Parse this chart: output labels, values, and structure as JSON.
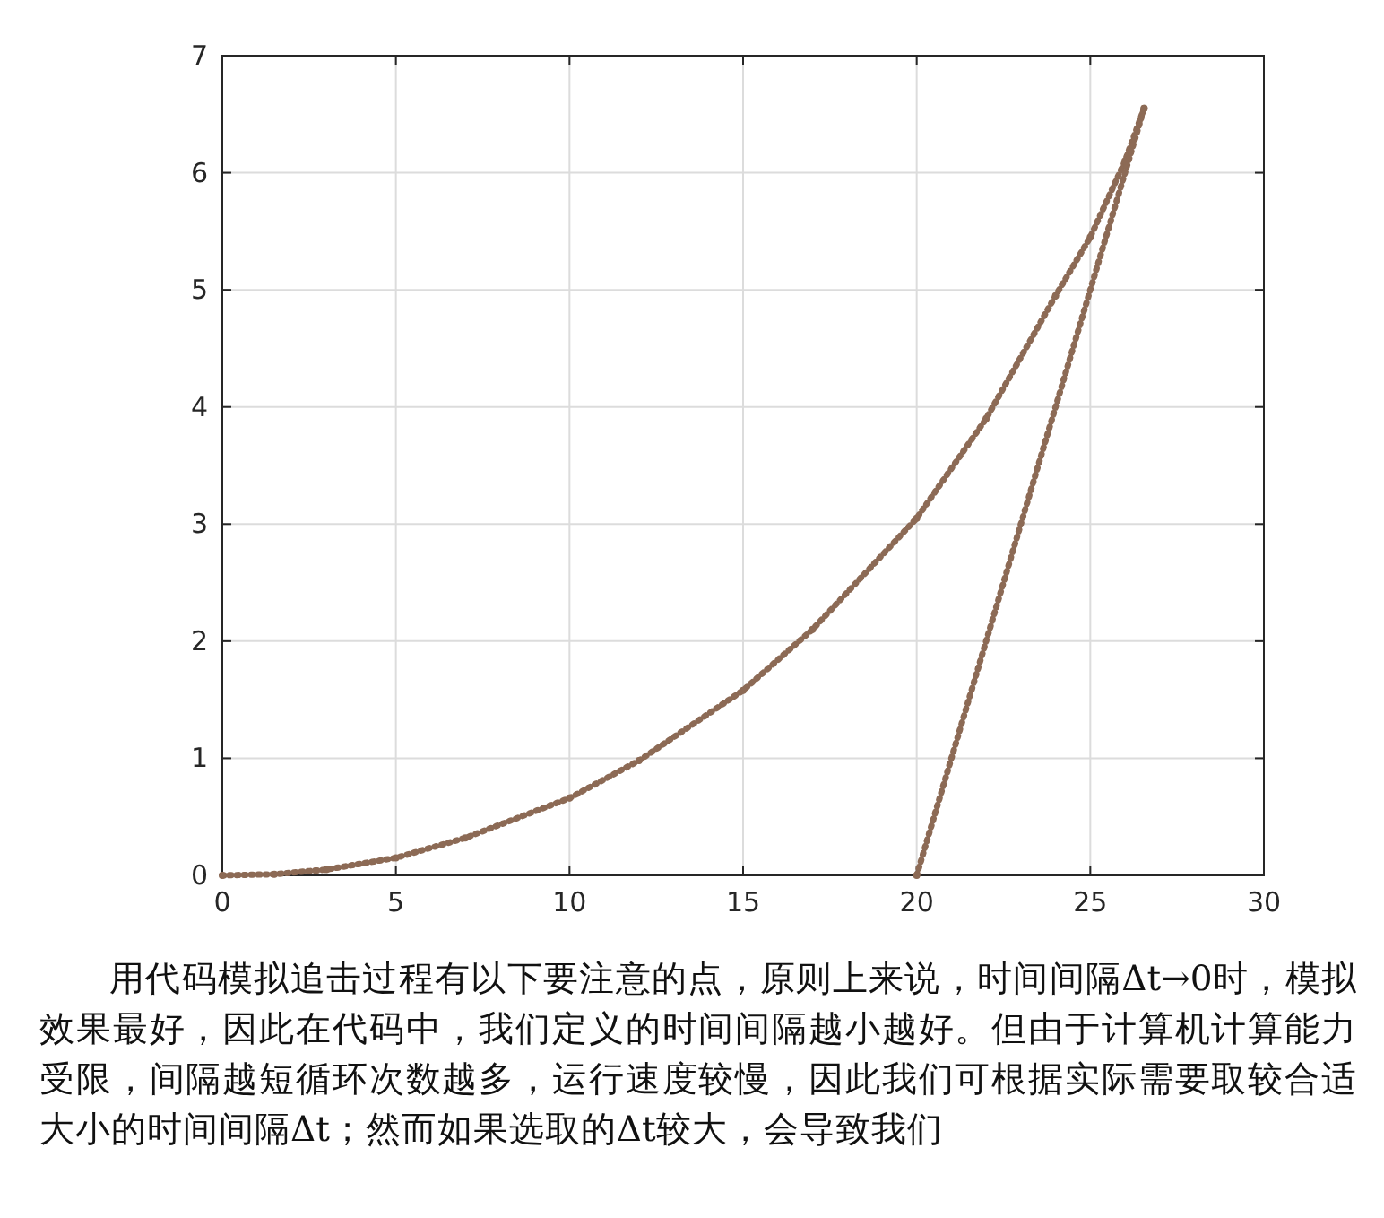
{
  "chart_data": {
    "type": "line",
    "xlim": [
      0,
      30
    ],
    "ylim": [
      0,
      7
    ],
    "xticks": [
      0,
      5,
      10,
      15,
      20,
      25,
      30
    ],
    "yticks": [
      0,
      1,
      2,
      3,
      4,
      5,
      6,
      7
    ],
    "grid": true,
    "line_style": "dotted",
    "marker": "circle",
    "series": [
      {
        "color": "#8c6a55",
        "x": [
          0,
          1.5,
          3,
          5,
          7,
          10,
          12,
          15,
          17,
          20,
          22,
          24,
          25,
          26,
          26.55
        ],
        "values": [
          0,
          0.01,
          0.05,
          0.15,
          0.32,
          0.66,
          0.98,
          1.58,
          2.1,
          3.05,
          3.9,
          4.95,
          5.45,
          6.1,
          6.55
        ]
      },
      {
        "color": "#8c6a55",
        "x": [
          20,
          26.55
        ],
        "values": [
          0,
          6.55
        ]
      }
    ],
    "annotations": [
      "用代码模拟追击过程有以下要注意的点，原则上来说，时间间隔Δt→0时，模拟效果最好，因此在代码中，我们定义的时间间隔越小越好。但由于计算机计算能力受限，间隔越短循环次数越多，运行速度较慢，因此我们可根据实际需要取较合适大小的时间间隔Δt；然而如果选取的Δt较大，会导致我们"
    ]
  }
}
